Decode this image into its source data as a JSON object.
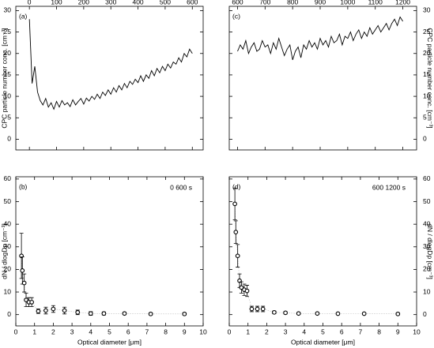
{
  "chart_data": [
    {
      "type": "line",
      "panel_label": "(a)",
      "y_label": "CPC particle number conc. [cm⁻³]",
      "x_axis_position": "top",
      "y_axis_position": "left",
      "color": "#000000",
      "xlim": [
        -50,
        640
      ],
      "xticks": [
        0,
        100,
        200,
        300,
        400,
        500,
        600
      ],
      "ylim": [
        -2.5,
        31
      ],
      "yticks": [
        0,
        5,
        10,
        15,
        20,
        25,
        30
      ],
      "x": [
        0,
        10,
        20,
        30,
        40,
        50,
        60,
        70,
        80,
        90,
        100,
        110,
        120,
        130,
        140,
        150,
        160,
        170,
        180,
        190,
        200,
        210,
        220,
        230,
        240,
        250,
        260,
        270,
        280,
        290,
        300,
        310,
        320,
        330,
        340,
        350,
        360,
        370,
        380,
        390,
        400,
        410,
        420,
        430,
        440,
        450,
        460,
        470,
        480,
        490,
        500,
        510,
        520,
        530,
        540,
        550,
        560,
        570,
        580,
        590,
        600
      ],
      "values": [
        28,
        13,
        17,
        11,
        9,
        8,
        9.5,
        7.5,
        8.5,
        7,
        8.8,
        7.5,
        9,
        8,
        8.5,
        7.6,
        9.2,
        8,
        8.8,
        9.5,
        8.2,
        9.6,
        8.9,
        10,
        9.3,
        10.5,
        9.5,
        11,
        10.2,
        11.5,
        10.5,
        12,
        11,
        12.5,
        11.5,
        13,
        12,
        13.5,
        12.8,
        14,
        13.2,
        14.8,
        13.5,
        15,
        14.2,
        16,
        14.8,
        16.5,
        15.5,
        17,
        16,
        17.5,
        16.6,
        18,
        17.5,
        19,
        18,
        20,
        19.2,
        21,
        20
      ]
    },
    {
      "type": "line",
      "panel_label": "(c)",
      "y_label": "CPC particle number conc. [cm⁻³]",
      "x_axis_position": "top",
      "y_axis_position": "right",
      "color": "#000000",
      "xlim": [
        570,
        1250
      ],
      "xticks": [
        600,
        700,
        800,
        900,
        1000,
        1100,
        1200
      ],
      "ylim": [
        -2.5,
        31
      ],
      "yticks": [
        0,
        5,
        10,
        15,
        20,
        25,
        30
      ],
      "x": [
        600,
        610,
        620,
        630,
        640,
        650,
        660,
        670,
        680,
        690,
        700,
        710,
        720,
        730,
        740,
        750,
        760,
        770,
        780,
        790,
        800,
        810,
        820,
        830,
        840,
        850,
        860,
        870,
        880,
        890,
        900,
        910,
        920,
        930,
        940,
        950,
        960,
        970,
        980,
        990,
        1000,
        1010,
        1020,
        1030,
        1040,
        1050,
        1060,
        1070,
        1080,
        1090,
        1100,
        1110,
        1120,
        1130,
        1140,
        1150,
        1160,
        1170,
        1180,
        1190,
        1200
      ],
      "values": [
        20.5,
        22,
        21,
        23,
        20,
        21.5,
        22.5,
        20.5,
        21,
        23,
        21.5,
        22,
        20,
        22.5,
        21,
        23.5,
        21.5,
        19.5,
        21,
        22,
        18.5,
        20.5,
        21.5,
        19,
        22,
        21,
        23,
        21.5,
        22.5,
        21,
        23.5,
        22,
        23,
        21.5,
        24,
        22.5,
        23,
        24.5,
        22,
        24,
        23.5,
        25,
        23,
        24.5,
        25.5,
        23.5,
        25,
        24,
        26,
        24.5,
        25.5,
        26.5,
        25,
        26,
        27,
        25.5,
        27,
        28,
        26.5,
        28.5,
        27.5
      ]
    },
    {
      "type": "scatter",
      "panel_label": "(b)",
      "annotation": "0   600 s",
      "x_label": "Optical diameter [μm]",
      "y_label": "dN / dlogDp [cm⁻³]",
      "x_axis_position": "bottom",
      "y_axis_position": "left",
      "color": "#000000",
      "xlim": [
        0,
        10
      ],
      "xticks": [
        0,
        1,
        2,
        3,
        4,
        5,
        6,
        7,
        8,
        9,
        10
      ],
      "ylim": [
        -5,
        61
      ],
      "yticks": [
        0,
        10,
        20,
        30,
        40,
        50,
        60
      ],
      "x": [
        0.3,
        0.35,
        0.45,
        0.55,
        0.7,
        0.85,
        1.2,
        1.6,
        2.0,
        2.6,
        3.3,
        4.0,
        4.7,
        5.8,
        7.2,
        9.0
      ],
      "values": [
        26,
        19.5,
        14,
        6.5,
        5.5,
        5.5,
        1.5,
        1.8,
        2.5,
        1.8,
        1.0,
        0.5,
        0.5,
        0.5,
        0.3,
        0.3
      ],
      "errors": [
        10,
        6,
        4,
        3,
        2,
        2,
        1,
        1.5,
        1.5,
        1.5,
        1,
        0.8,
        0.7,
        0.5,
        0.5,
        0.5
      ]
    },
    {
      "type": "scatter",
      "panel_label": "(d)",
      "annotation": "600   1200 s",
      "x_label": "Optical diameter [μm]",
      "y_label": "dN / dlogDp [cm⁻³]",
      "x_axis_position": "bottom",
      "y_axis_position": "right",
      "color": "#000000",
      "xlim": [
        0,
        10
      ],
      "xticks": [
        0,
        1,
        2,
        3,
        4,
        5,
        6,
        7,
        8,
        9,
        10
      ],
      "ylim": [
        -5,
        61
      ],
      "yticks": [
        0,
        10,
        20,
        30,
        40,
        50,
        60
      ],
      "x": [
        0.3,
        0.35,
        0.45,
        0.55,
        0.65,
        0.8,
        0.95,
        1.2,
        1.5,
        1.8,
        2.4,
        3.0,
        3.7,
        4.7,
        5.8,
        7.2,
        9.0
      ],
      "values": [
        49,
        36.5,
        26,
        15,
        12,
        11,
        10.5,
        2.5,
        2.5,
        2.5,
        1.0,
        0.8,
        0.5,
        0.5,
        0.4,
        0.4,
        0.3
      ],
      "errors": [
        7,
        5,
        5,
        3,
        2.5,
        2.5,
        2.5,
        1.2,
        1.2,
        1.2,
        0.6,
        0.5,
        0.4,
        0.4,
        0.4,
        0.4,
        0.4
      ]
    }
  ]
}
